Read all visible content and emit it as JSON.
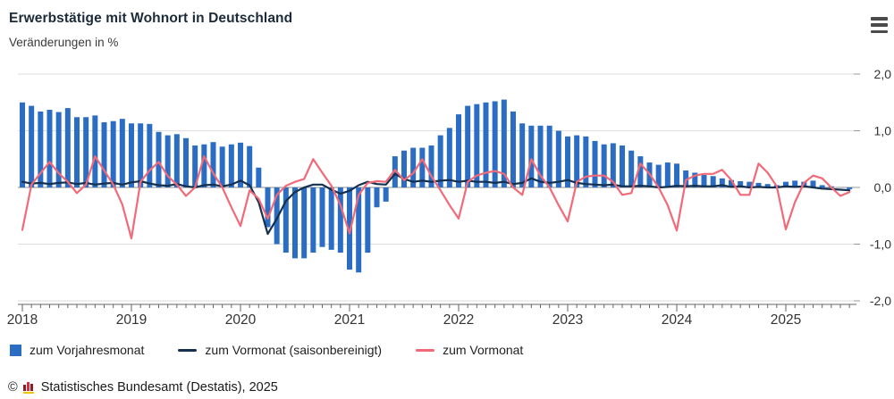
{
  "menu": {
    "tooltip": "Menü"
  },
  "footer": {
    "copyright": "©",
    "source": "Statistisches Bundesamt (Destatis), 2025"
  },
  "chart_data": {
    "type": "combo-bar-line",
    "title": "Erwerbstätige mit Wohnort in Deutschland",
    "subtitle": "Veränderungen in %",
    "frequency": "monthly",
    "x_start": "2018-01",
    "x_end": "2025-08",
    "x_tick_years": [
      "2018",
      "2019",
      "2020",
      "2021",
      "2022",
      "2023",
      "2024",
      "2025"
    ],
    "ylim": [
      -2.0,
      2.0
    ],
    "grid": "horizontal",
    "legend_position": "bottom",
    "y_ticks": [
      {
        "value": 2,
        "label": "2,0"
      },
      {
        "value": 1,
        "label": "1,0"
      },
      {
        "value": 0,
        "label": "0,0"
      },
      {
        "value": -1,
        "label": "-1,0"
      },
      {
        "value": -2,
        "label": "-2,0"
      }
    ],
    "series": [
      {
        "name": "zum Vorjahresmonat",
        "type": "bar",
        "color": "#2a6dc3",
        "values": [
          1.5,
          1.44,
          1.34,
          1.37,
          1.33,
          1.4,
          1.24,
          1.24,
          1.27,
          1.15,
          1.17,
          1.21,
          1.13,
          1.13,
          1.12,
          0.98,
          0.92,
          0.94,
          0.87,
          0.74,
          0.76,
          0.8,
          0.72,
          0.76,
          0.79,
          0.73,
          0.35,
          -0.7,
          -1.0,
          -1.15,
          -1.25,
          -1.25,
          -1.15,
          -1.05,
          -1.1,
          -1.15,
          -1.45,
          -1.5,
          -1.15,
          -0.35,
          -0.25,
          0.55,
          0.65,
          0.7,
          0.7,
          0.74,
          0.92,
          1.05,
          1.29,
          1.44,
          1.47,
          1.5,
          1.52,
          1.55,
          1.34,
          1.13,
          1.09,
          1.09,
          1.09,
          1.0,
          0.9,
          0.92,
          0.9,
          0.82,
          0.76,
          0.78,
          0.74,
          0.65,
          0.55,
          0.44,
          0.4,
          0.44,
          0.42,
          0.3,
          0.26,
          0.22,
          0.2,
          0.16,
          0.13,
          0.11,
          0.1,
          0.08,
          0.06,
          0.04,
          0.1,
          0.12,
          0.1,
          0.12,
          0.04,
          0.02,
          0.0,
          -0.03
        ]
      },
      {
        "name": "zum Vormonat (saisonbereinigt)",
        "type": "line",
        "color": "#14304e",
        "values": [
          0.1,
          0.07,
          0.08,
          0.06,
          0.08,
          0.09,
          0.06,
          0.08,
          0.05,
          0.07,
          0.08,
          0.05,
          0.09,
          0.11,
          0.07,
          0.04,
          0.03,
          0.06,
          0.02,
          0.0,
          0.04,
          0.05,
          0.02,
          0.05,
          0.12,
          0.04,
          -0.26,
          -0.82,
          -0.55,
          -0.24,
          -0.08,
          0.0,
          0.05,
          0.05,
          -0.04,
          -0.11,
          -0.06,
          0.04,
          0.1,
          0.06,
          0.05,
          0.24,
          0.15,
          0.1,
          0.12,
          0.1,
          0.12,
          0.13,
          0.1,
          0.12,
          0.1,
          0.1,
          0.08,
          0.1,
          0.06,
          0.08,
          0.16,
          0.1,
          0.08,
          0.1,
          0.13,
          0.08,
          0.06,
          0.05,
          0.04,
          0.05,
          0.02,
          0.02,
          0.03,
          0.02,
          0.0,
          0.01,
          0.03,
          0.02,
          0.03,
          0.02,
          0.02,
          0.04,
          0.01,
          0.02,
          0.0,
          0.01,
          0.0,
          0.0,
          0.02,
          0.01,
          0.02,
          0.0,
          -0.02,
          -0.03,
          -0.04,
          -0.05
        ]
      },
      {
        "name": "zum Vormonat",
        "type": "line",
        "color": "#f26978",
        "values": [
          -0.75,
          0.05,
          0.25,
          0.45,
          0.25,
          0.1,
          -0.1,
          0.05,
          0.55,
          0.3,
          0.05,
          -0.3,
          -0.9,
          0.1,
          0.3,
          0.45,
          0.2,
          0.05,
          -0.15,
          0.0,
          0.55,
          0.25,
          0.0,
          -0.35,
          -0.68,
          -0.05,
          -0.2,
          -0.55,
          -0.13,
          0.03,
          0.1,
          0.15,
          0.5,
          0.26,
          0.03,
          -0.31,
          -0.81,
          -0.13,
          0.08,
          0.11,
          0.1,
          0.31,
          0.13,
          0.25,
          0.5,
          0.2,
          -0.05,
          -0.31,
          -0.55,
          0.1,
          0.21,
          0.26,
          0.29,
          0.24,
          0.0,
          -0.13,
          0.5,
          0.21,
          0.0,
          -0.31,
          -0.6,
          0.1,
          0.19,
          0.21,
          0.21,
          0.1,
          -0.13,
          -0.1,
          0.42,
          0.24,
          0.0,
          -0.31,
          -0.76,
          0.13,
          0.21,
          0.24,
          0.24,
          0.31,
          0.13,
          -0.13,
          -0.13,
          0.42,
          0.26,
          0.02,
          -0.74,
          -0.26,
          0.08,
          0.21,
          0.16,
          0.0,
          -0.15,
          -0.08
        ]
      }
    ]
  }
}
